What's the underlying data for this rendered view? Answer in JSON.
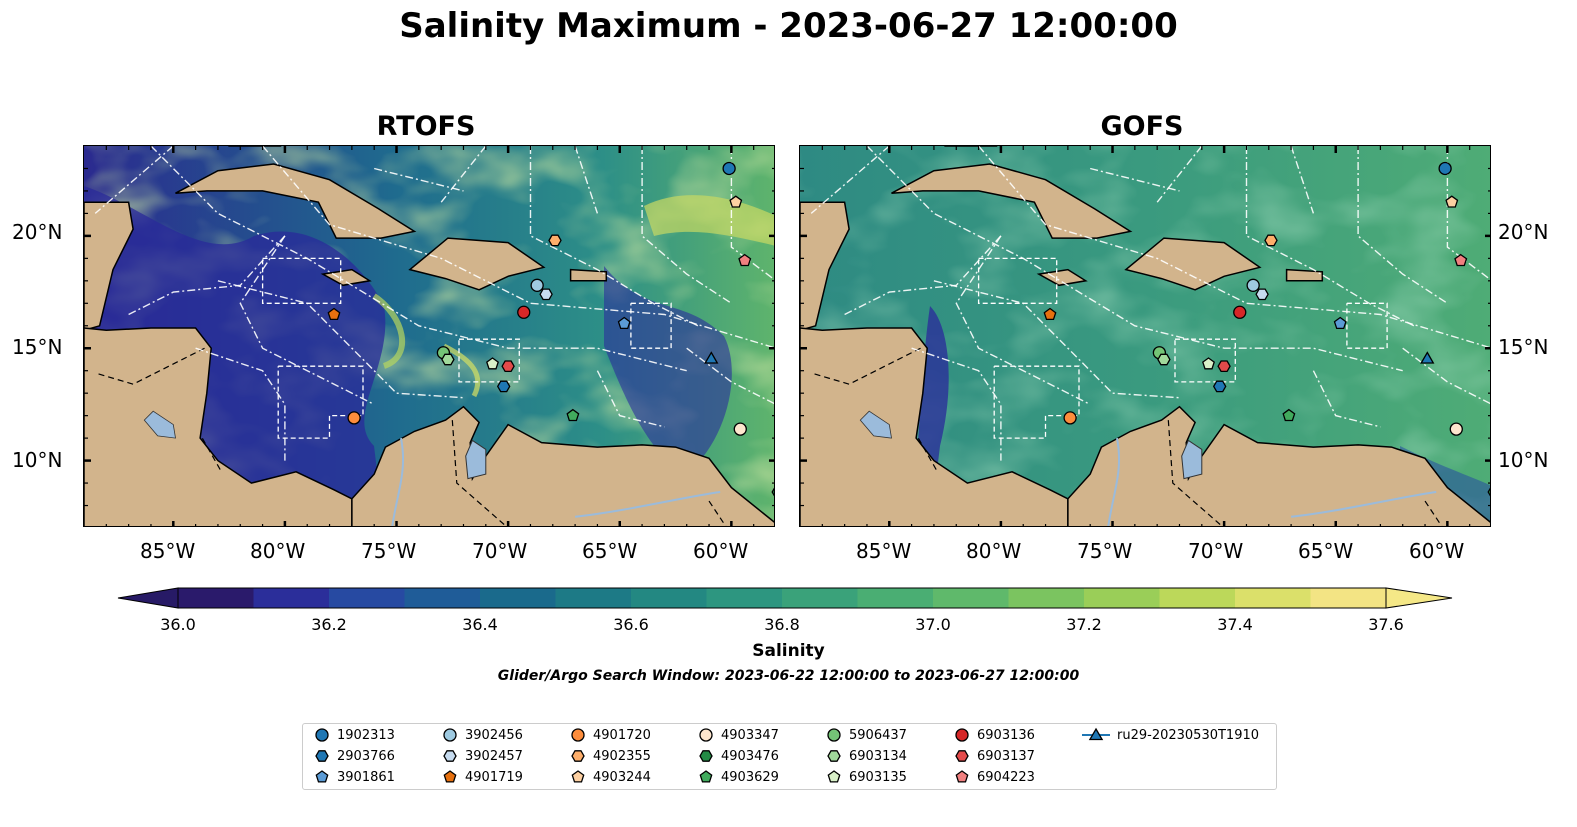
{
  "title": "Salinity Maximum - 2023-06-27 12:00:00",
  "panels": [
    {
      "title": "RTOFS",
      "fill": "rtofs"
    },
    {
      "title": "GOFS",
      "fill": "gofs"
    }
  ],
  "lat_ticks": [
    "20°N",
    "15°N",
    "10°N"
  ],
  "lon_ticks": [
    "85°W",
    "80°W",
    "75°W",
    "70°W",
    "65°W",
    "60°W"
  ],
  "colorbar": {
    "label": "Salinity",
    "ticks": [
      "36.0",
      "36.2",
      "36.4",
      "36.6",
      "36.8",
      "37.0",
      "37.2",
      "37.4",
      "37.6"
    ],
    "colors": [
      "#2a1a6b",
      "#2b2e9a",
      "#274aa2",
      "#1f5c98",
      "#1a6a8c",
      "#1d7a86",
      "#238882",
      "#2d9680",
      "#3aa27a",
      "#4aae73",
      "#5fb96b",
      "#7bc460",
      "#9ace58",
      "#bcd85a",
      "#dbe06a",
      "#f3e484"
    ]
  },
  "search_window": "Glider/Argo Search Window: 2023-06-22 12:00:00 to 2023-06-27 12:00:00",
  "legend": [
    {
      "id": "1902313",
      "marker": "circle",
      "color": "#1f77b4"
    },
    {
      "id": "2903766",
      "marker": "hexagon",
      "color": "#1f77b4"
    },
    {
      "id": "3901861",
      "marker": "pentagon",
      "color": "#5b9bd5"
    },
    {
      "id": "3902456",
      "marker": "circle",
      "color": "#9ecae1"
    },
    {
      "id": "3902457",
      "marker": "hexagon",
      "color": "#c6dbef"
    },
    {
      "id": "4901719",
      "marker": "pentagon",
      "color": "#e6700f"
    },
    {
      "id": "4901720",
      "marker": "circle",
      "color": "#fd8d3c"
    },
    {
      "id": "4902355",
      "marker": "hexagon",
      "color": "#fdae6b"
    },
    {
      "id": "4903244",
      "marker": "pentagon",
      "color": "#fdd0a2"
    },
    {
      "id": "4903347",
      "marker": "circle",
      "color": "#fee6ce"
    },
    {
      "id": "4903476",
      "marker": "hexagon",
      "color": "#238b45"
    },
    {
      "id": "4903629",
      "marker": "pentagon",
      "color": "#41ab5d"
    },
    {
      "id": "5906437",
      "marker": "circle",
      "color": "#74c476"
    },
    {
      "id": "6903134",
      "marker": "hexagon",
      "color": "#a1d99b"
    },
    {
      "id": "6903135",
      "marker": "pentagon",
      "color": "#d9f0c8"
    },
    {
      "id": "6903136",
      "marker": "circle",
      "color": "#d62728"
    },
    {
      "id": "6903137",
      "marker": "hexagon",
      "color": "#e34a4a"
    },
    {
      "id": "6904223",
      "marker": "pentagon",
      "color": "#f08080"
    },
    {
      "id": "ru29-20230530T1910",
      "marker": "triangle-line",
      "color": "#1f77b4"
    }
  ],
  "floats": [
    {
      "id": "1902313",
      "lon": -60.1,
      "lat": 23.0
    },
    {
      "id": "2903766",
      "lon": -70.2,
      "lat": 13.3
    },
    {
      "id": "3901861",
      "lon": -64.8,
      "lat": 16.1
    },
    {
      "id": "3902456",
      "lon": -68.7,
      "lat": 17.8
    },
    {
      "id": "3902457",
      "lon": -68.3,
      "lat": 17.4
    },
    {
      "id": "4901719",
      "lon": -77.8,
      "lat": 16.5
    },
    {
      "id": "4901720",
      "lon": -76.9,
      "lat": 11.9
    },
    {
      "id": "4902355",
      "lon": -67.9,
      "lat": 19.8
    },
    {
      "id": "4903244",
      "lon": -59.8,
      "lat": 21.5
    },
    {
      "id": "4903347",
      "lon": -59.6,
      "lat": 11.4
    },
    {
      "id": "4903476",
      "lon": -57.9,
      "lat": 8.6
    },
    {
      "id": "4903629",
      "lon": -67.1,
      "lat": 12.0
    },
    {
      "id": "5906437",
      "lon": -72.9,
      "lat": 14.8
    },
    {
      "id": "6903134",
      "lon": -72.7,
      "lat": 14.5
    },
    {
      "id": "6903135",
      "lon": -70.7,
      "lat": 14.3
    },
    {
      "id": "6903136",
      "lon": -69.3,
      "lat": 16.6
    },
    {
      "id": "6903137",
      "lon": -70.0,
      "lat": 14.2
    },
    {
      "id": "6904223",
      "lon": -59.4,
      "lat": 18.9
    },
    {
      "id": "ru29-20230530T1910",
      "lon": -60.9,
      "lat": 14.5
    }
  ]
}
